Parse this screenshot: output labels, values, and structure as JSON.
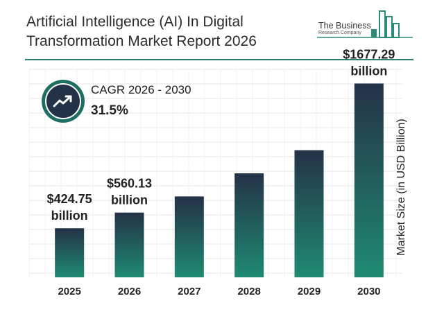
{
  "header": {
    "title": "Artificial Intelligence (AI) In Digital Transformation Market Report 2026",
    "logo_name": "The Business",
    "logo_sub": "Research Company"
  },
  "cagr": {
    "label": "CAGR 2026 - 2030",
    "value": "31.5%"
  },
  "colors": {
    "bar_top": "#243247",
    "bar_bottom": "#1f8a72",
    "accent": "#2b7d6e"
  },
  "chart_data": {
    "type": "bar",
    "categories": [
      "2025",
      "2026",
      "2027",
      "2028",
      "2029",
      "2030"
    ],
    "values": [
      424.75,
      560.13,
      700,
      900,
      1100,
      1677.29
    ],
    "data_labels": [
      "$424.75 billion",
      "$560.13 billion",
      "",
      "",
      "",
      "$1677.29 billion"
    ],
    "ylabel": "Market Size (in USD Billion)",
    "xlabel": "",
    "ylim": [
      0,
      1800
    ],
    "grid": true,
    "legend": "none"
  }
}
